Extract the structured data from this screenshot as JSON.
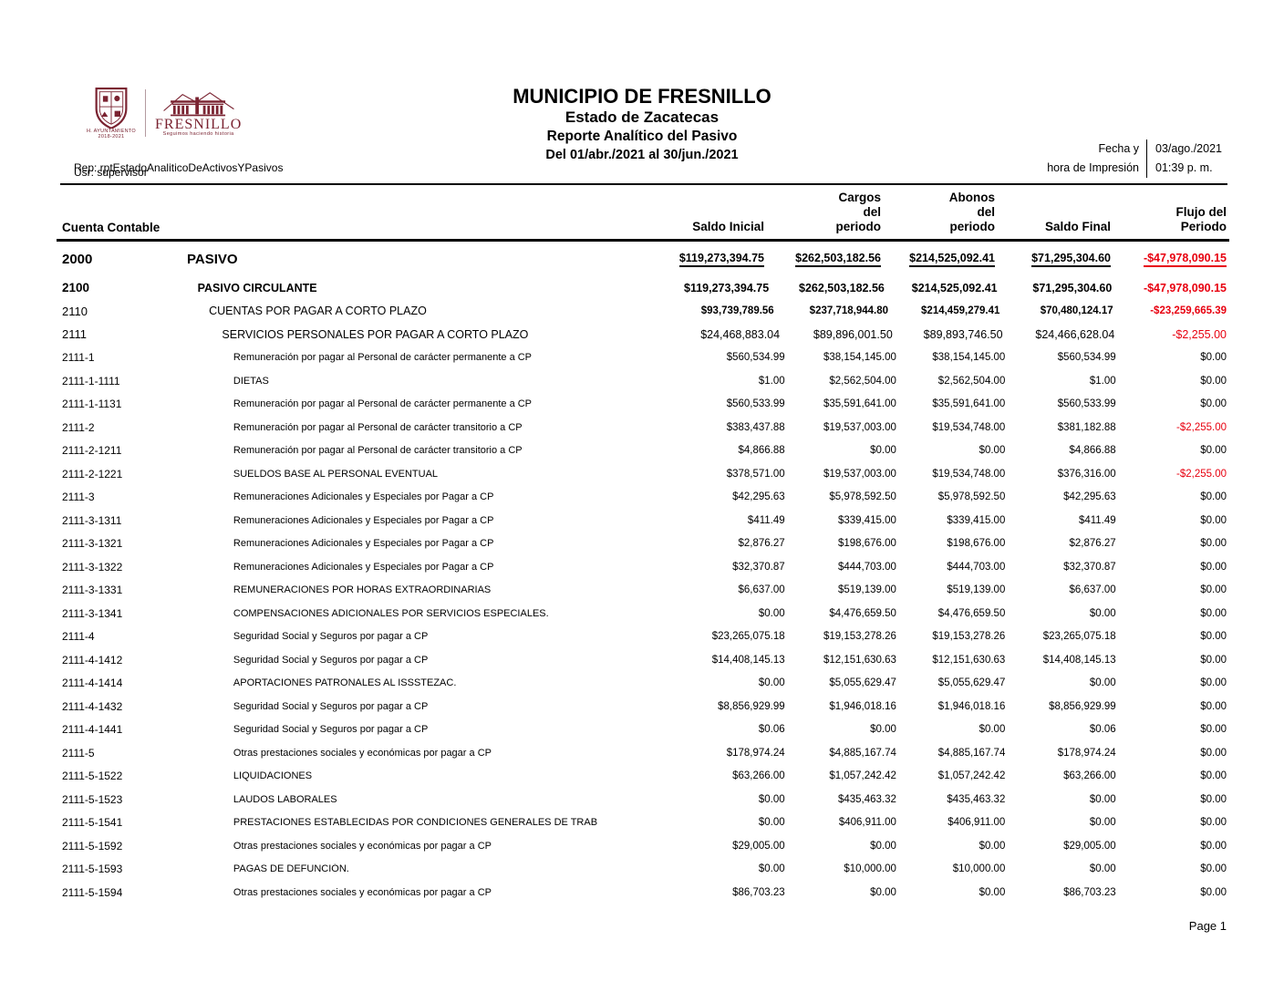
{
  "header": {
    "title": "MUNICIPIO DE FRESNILLO",
    "subtitle_state": "Estado de Zacatecas",
    "subtitle_report": "Reporte Analítico del Pasivo",
    "subtitle_period": "Del 01/abr./2021 al 30/jun./2021",
    "print_label": "Fecha y\nhora de Impresión",
    "print_date": "03/ago./2021",
    "print_time": "01:39 p. m.",
    "report_id": "Rep: rptEstadoAnaliticoDeActivosYPasivos",
    "user": "Usr: supervisor",
    "logo": {
      "ayuntamiento": "H. AYUNTAMIENTO",
      "years": "2018-2021",
      "brand": "FRESNILLO",
      "slogan": "Seguimos haciendo historia",
      "brand_color": "#7a2331"
    }
  },
  "colors": {
    "negative_value": "#e8000f",
    "text": "#000000"
  },
  "table": {
    "account_col_header": "Cuenta Contable",
    "col_headers": [
      {
        "lines": [
          "Saldo Inicial"
        ]
      },
      {
        "lines": [
          "Cargos",
          "del",
          "periodo"
        ]
      },
      {
        "lines": [
          "Abonos",
          "del",
          "periodo"
        ]
      },
      {
        "lines": [
          "Saldo Final"
        ]
      },
      {
        "lines": [
          "Flujo del",
          "Periodo"
        ]
      }
    ],
    "rows": [
      {
        "code": "2000",
        "desc": "PASIVO",
        "level": 0,
        "values": [
          "$119,273,394.75",
          "$262,503,182.56",
          "$214,525,092.41",
          "$71,295,304.60",
          "-$47,978,090.15"
        ]
      },
      {
        "code": "2100",
        "desc": "PASIVO CIRCULANTE",
        "level": 1,
        "values": [
          "$119,273,394.75",
          "$262,503,182.56",
          "$214,525,092.41",
          "$71,295,304.60",
          "-$47,978,090.15"
        ]
      },
      {
        "code": "2110",
        "desc": "CUENTAS POR PAGAR A CORTO PLAZO",
        "level": 2,
        "values": [
          "$93,739,789.56",
          "$237,718,944.80",
          "$214,459,279.41",
          "$70,480,124.17",
          "-$23,259,665.39"
        ]
      },
      {
        "code": "2111",
        "desc": "SERVICIOS PERSONALES POR PAGAR A CORTO PLAZO",
        "level": 3,
        "values": [
          "$24,468,883.04",
          "$89,896,001.50",
          "$89,893,746.50",
          "$24,466,628.04",
          "-$2,255.00"
        ]
      },
      {
        "code": "2111-1",
        "desc": "Remuneración por pagar al Personal de carácter permanente a CP",
        "level": 4,
        "values": [
          "$560,534.99",
          "$38,154,145.00",
          "$38,154,145.00",
          "$560,534.99",
          "$0.00"
        ]
      },
      {
        "code": "2111-1-1111",
        "desc": "DIETAS",
        "level": 4,
        "values": [
          "$1.00",
          "$2,562,504.00",
          "$2,562,504.00",
          "$1.00",
          "$0.00"
        ]
      },
      {
        "code": "2111-1-1131",
        "desc": "Remuneración por pagar al Personal de carácter permanente a CP",
        "level": 4,
        "values": [
          "$560,533.99",
          "$35,591,641.00",
          "$35,591,641.00",
          "$560,533.99",
          "$0.00"
        ]
      },
      {
        "code": "2111-2",
        "desc": "Remuneración por pagar al Personal de carácter transitorio a CP",
        "level": 4,
        "values": [
          "$383,437.88",
          "$19,537,003.00",
          "$19,534,748.00",
          "$381,182.88",
          "-$2,255.00"
        ]
      },
      {
        "code": "2111-2-1211",
        "desc": "Remuneración por pagar al Personal de carácter transitorio a CP",
        "level": 4,
        "values": [
          "$4,866.88",
          "$0.00",
          "$0.00",
          "$4,866.88",
          "$0.00"
        ]
      },
      {
        "code": "2111-2-1221",
        "desc": "SUELDOS BASE AL PERSONAL EVENTUAL",
        "level": 4,
        "values": [
          "$378,571.00",
          "$19,537,003.00",
          "$19,534,748.00",
          "$376,316.00",
          "-$2,255.00"
        ]
      },
      {
        "code": "2111-3",
        "desc": "Remuneraciones Adicionales y Especiales por Pagar a CP",
        "level": 4,
        "values": [
          "$42,295.63",
          "$5,978,592.50",
          "$5,978,592.50",
          "$42,295.63",
          "$0.00"
        ]
      },
      {
        "code": "2111-3-1311",
        "desc": "Remuneraciones Adicionales y Especiales por Pagar a CP",
        "level": 4,
        "values": [
          "$411.49",
          "$339,415.00",
          "$339,415.00",
          "$411.49",
          "$0.00"
        ]
      },
      {
        "code": "2111-3-1321",
        "desc": "Remuneraciones Adicionales y Especiales por Pagar a CP",
        "level": 4,
        "values": [
          "$2,876.27",
          "$198,676.00",
          "$198,676.00",
          "$2,876.27",
          "$0.00"
        ]
      },
      {
        "code": "2111-3-1322",
        "desc": "Remuneraciones Adicionales y Especiales por Pagar a CP",
        "level": 4,
        "values": [
          "$32,370.87",
          "$444,703.00",
          "$444,703.00",
          "$32,370.87",
          "$0.00"
        ]
      },
      {
        "code": "2111-3-1331",
        "desc": "REMUNERACIONES POR  HORAS EXTRAORDINARIAS",
        "level": 4,
        "values": [
          "$6,637.00",
          "$519,139.00",
          "$519,139.00",
          "$6,637.00",
          "$0.00"
        ]
      },
      {
        "code": "2111-3-1341",
        "desc": "COMPENSACIONES ADICIONALES POR SERVICIOS ESPECIALES.",
        "level": 4,
        "values": [
          "$0.00",
          "$4,476,659.50",
          "$4,476,659.50",
          "$0.00",
          "$0.00"
        ]
      },
      {
        "code": "2111-4",
        "desc": "Seguridad Social y Seguros por pagar a CP",
        "level": 4,
        "values": [
          "$23,265,075.18",
          "$19,153,278.26",
          "$19,153,278.26",
          "$23,265,075.18",
          "$0.00"
        ]
      },
      {
        "code": "2111-4-1412",
        "desc": "Seguridad Social y Seguros por pagar a CP",
        "level": 4,
        "values": [
          "$14,408,145.13",
          "$12,151,630.63",
          "$12,151,630.63",
          "$14,408,145.13",
          "$0.00"
        ]
      },
      {
        "code": "2111-4-1414",
        "desc": "APORTACIONES  PATRONALES AL ISSSTEZAC.",
        "level": 4,
        "values": [
          "$0.00",
          "$5,055,629.47",
          "$5,055,629.47",
          "$0.00",
          "$0.00"
        ]
      },
      {
        "code": "2111-4-1432",
        "desc": "Seguridad Social y Seguros por pagar a CP",
        "level": 4,
        "values": [
          "$8,856,929.99",
          "$1,946,018.16",
          "$1,946,018.16",
          "$8,856,929.99",
          "$0.00"
        ]
      },
      {
        "code": "2111-4-1441",
        "desc": "Seguridad Social y Seguros por pagar a CP",
        "level": 4,
        "values": [
          "$0.06",
          "$0.00",
          "$0.00",
          "$0.06",
          "$0.00"
        ]
      },
      {
        "code": "2111-5",
        "desc": "Otras prestaciones sociales y económicas por pagar a CP",
        "level": 4,
        "values": [
          "$178,974.24",
          "$4,885,167.74",
          "$4,885,167.74",
          "$178,974.24",
          "$0.00"
        ]
      },
      {
        "code": "2111-5-1522",
        "desc": "LIQUIDACIONES",
        "level": 4,
        "values": [
          "$63,266.00",
          "$1,057,242.42",
          "$1,057,242.42",
          "$63,266.00",
          "$0.00"
        ]
      },
      {
        "code": "2111-5-1523",
        "desc": "LAUDOS LABORALES",
        "level": 4,
        "values": [
          "$0.00",
          "$435,463.32",
          "$435,463.32",
          "$0.00",
          "$0.00"
        ]
      },
      {
        "code": "2111-5-1541",
        "desc": "PRESTACIONES ESTABLECIDAS POR CONDICIONES GENERALES DE TRAB",
        "level": 4,
        "values": [
          "$0.00",
          "$406,911.00",
          "$406,911.00",
          "$0.00",
          "$0.00"
        ]
      },
      {
        "code": "2111-5-1592",
        "desc": "Otras prestaciones sociales y económicas por pagar a CP",
        "level": 4,
        "values": [
          "$29,005.00",
          "$0.00",
          "$0.00",
          "$29,005.00",
          "$0.00"
        ]
      },
      {
        "code": "2111-5-1593",
        "desc": "PAGAS DE DEFUNCIÓN.",
        "level": 4,
        "values": [
          "$0.00",
          "$10,000.00",
          "$10,000.00",
          "$0.00",
          "$0.00"
        ]
      },
      {
        "code": "2111-5-1594",
        "desc": "Otras prestaciones sociales y económicas por pagar a CP",
        "level": 4,
        "values": [
          "$86,703.23",
          "$0.00",
          "$0.00",
          "$86,703.23",
          "$0.00"
        ]
      }
    ]
  },
  "footer": {
    "page_label": "Page 1"
  }
}
